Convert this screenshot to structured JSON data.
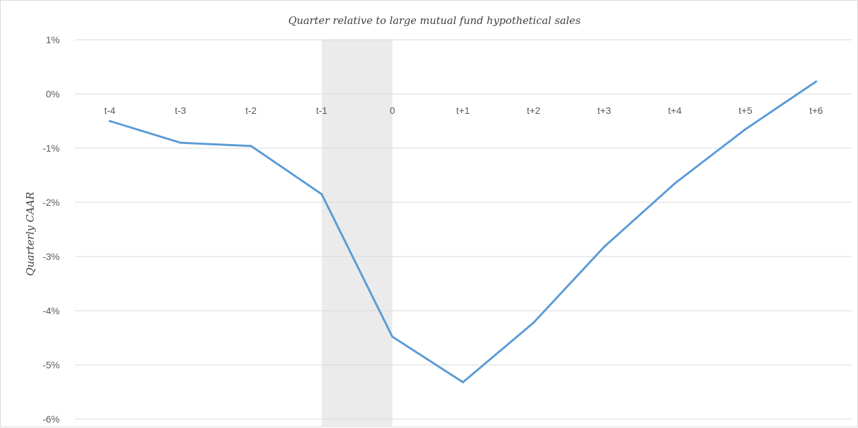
{
  "chart_data": {
    "type": "line",
    "title": "",
    "xlabel": "Quarter relative to large mutual fund hypothetical sales",
    "ylabel": "Quarterly CAAR",
    "categories": [
      "t-4",
      "t-3",
      "t-2",
      "t-1",
      "0",
      "t+1",
      "t+2",
      "t+3",
      "t+4",
      "t+5",
      "t+6"
    ],
    "series": [
      {
        "values": [
          -0.5,
          -0.9,
          -0.96,
          -1.85,
          -4.48,
          -5.32,
          -4.22,
          -2.82,
          -1.65,
          -0.65,
          0.23
        ]
      }
    ],
    "ylim": [
      -6,
      1
    ],
    "yticks": [
      1,
      0,
      -1,
      -2,
      -3,
      -4,
      -5,
      -6
    ],
    "ytick_labels": [
      "1%",
      "0%",
      "-1%",
      "-2%",
      "-3%",
      "-4%",
      "-5%",
      "-6%"
    ],
    "shaded_region": [
      "t-1",
      "0"
    ],
    "x_axis_position": "top",
    "grid": true,
    "colors": {
      "line": "#5B9BD5",
      "shade": "#ebebeb",
      "grid": "#d9d9d9"
    }
  }
}
